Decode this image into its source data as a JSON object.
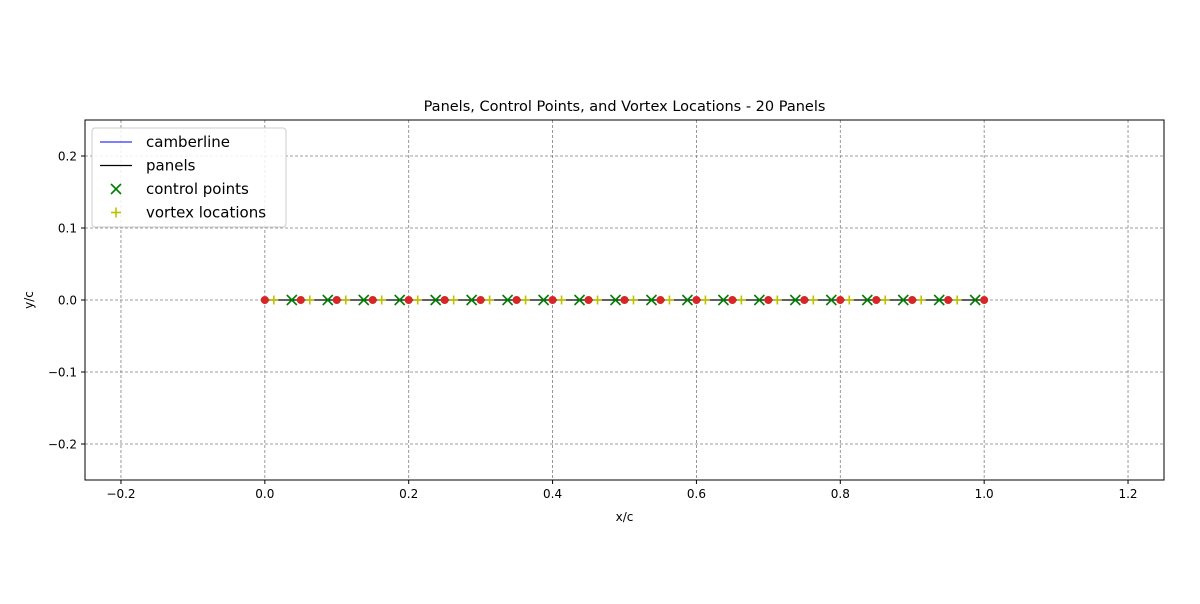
{
  "chart_data": {
    "type": "scatter",
    "title": "Panels, Control Points, and Vortex Locations - 20 Panels",
    "xlabel": "x/c",
    "ylabel": "y/c",
    "xlim": [
      -0.25,
      1.25
    ],
    "ylim": [
      -0.25,
      0.25
    ],
    "grid": true,
    "legend_position": "top-left",
    "x_ticks": [
      -0.2,
      0.0,
      0.2,
      0.4,
      0.6,
      0.8,
      1.0,
      1.2
    ],
    "x_tick_labels": [
      "−0.2",
      "0.0",
      "0.2",
      "0.4",
      "0.6",
      "0.8",
      "1.0",
      "1.2"
    ],
    "y_ticks": [
      0.2,
      0.1,
      0.0,
      -0.1,
      -0.2
    ],
    "y_tick_labels": [
      "0.2",
      "0.1",
      "0.0",
      "−0.1",
      "−0.2"
    ],
    "series": [
      {
        "name": "camberline",
        "kind": "line",
        "color": "#0000ff",
        "x": [
          0.0,
          1.0
        ],
        "y": [
          0.0,
          0.0
        ]
      },
      {
        "name": "panels",
        "kind": "line",
        "color": "#000000",
        "x": [
          0.0,
          1.0
        ],
        "y": [
          0.0,
          0.0
        ]
      },
      {
        "name": "control points",
        "kind": "marker-x",
        "color": "#008000",
        "x": [
          0.0375,
          0.0875,
          0.1375,
          0.1875,
          0.2375,
          0.2875,
          0.3375,
          0.3875,
          0.4375,
          0.4875,
          0.5375,
          0.5875,
          0.6375,
          0.6875,
          0.7375,
          0.7875,
          0.8375,
          0.8875,
          0.9375,
          0.9875
        ],
        "y": [
          0,
          0,
          0,
          0,
          0,
          0,
          0,
          0,
          0,
          0,
          0,
          0,
          0,
          0,
          0,
          0,
          0,
          0,
          0,
          0
        ]
      },
      {
        "name": "vortex locations",
        "kind": "marker-plus",
        "color": "#bfbf00",
        "x": [
          0.0125,
          0.0625,
          0.1125,
          0.1625,
          0.2125,
          0.2625,
          0.3125,
          0.3625,
          0.4125,
          0.4625,
          0.5125,
          0.5625,
          0.6125,
          0.6625,
          0.7125,
          0.7625,
          0.8125,
          0.8625,
          0.9125,
          0.9625
        ],
        "y": [
          0,
          0,
          0,
          0,
          0,
          0,
          0,
          0,
          0,
          0,
          0,
          0,
          0,
          0,
          0,
          0,
          0,
          0,
          0,
          0
        ]
      },
      {
        "name": "panel endpoints",
        "kind": "marker-dot",
        "color": "#d62728",
        "in_legend": false,
        "x": [
          0.0,
          0.05,
          0.1,
          0.15,
          0.2,
          0.25,
          0.3,
          0.35,
          0.4,
          0.45,
          0.5,
          0.55,
          0.6,
          0.65,
          0.7,
          0.75,
          0.8,
          0.85,
          0.9,
          0.95,
          1.0
        ],
        "y": [
          0,
          0,
          0,
          0,
          0,
          0,
          0,
          0,
          0,
          0,
          0,
          0,
          0,
          0,
          0,
          0,
          0,
          0,
          0,
          0,
          0
        ]
      }
    ],
    "legend": [
      "camberline",
      "panels",
      "control points",
      "vortex locations"
    ]
  }
}
